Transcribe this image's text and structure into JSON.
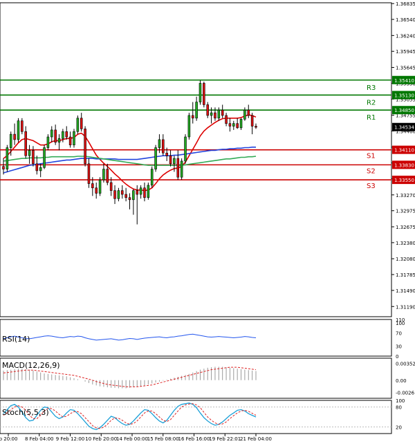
{
  "chart_data": [
    {
      "type": "candlestick",
      "panel": "price",
      "ylim": [
        1.31,
        1.3685
      ],
      "y_ticks": [
        "1.36835",
        "1.36540",
        "1.36240",
        "1.35945",
        "1.35645",
        "1.35350",
        "1.35055",
        "1.34755",
        "1.34460",
        "1.34160",
        "1.33865",
        "1.33570",
        "1.33270",
        "1.32975",
        "1.32675",
        "1.32380",
        "1.32080",
        "1.31785",
        "1.31490",
        "1.31190"
      ],
      "x_ticks": [
        "b 20:00",
        "8 Feb 04:00",
        "9 Feb 12:00",
        "10 Feb 20:00",
        "14 Feb 00:00",
        "15 Feb 08:00",
        "16 Feb 16:00",
        "19 Feb 22:01",
        "21 Feb 04:00"
      ],
      "current_price": "1.34534",
      "levels": [
        {
          "name": "R3",
          "value": 1.3541,
          "label": "1.35410",
          "color": "#007700"
        },
        {
          "name": "R2",
          "value": 1.3513,
          "label": "1.35130",
          "color": "#007700"
        },
        {
          "name": "R1",
          "value": 1.3485,
          "label": "1.34850",
          "color": "#007700"
        },
        {
          "name": "S1",
          "value": 1.3411,
          "label": "1.34110",
          "color": "#cc0000"
        },
        {
          "name": "S2",
          "value": 1.3383,
          "label": "1.33830",
          "color": "#cc0000"
        },
        {
          "name": "S3",
          "value": 1.3355,
          "label": "1.33550",
          "color": "#cc0000"
        }
      ],
      "candles": [
        [
          1.338,
          1.3395,
          1.3365,
          1.3375
        ],
        [
          1.3375,
          1.342,
          1.337,
          1.3415
        ],
        [
          1.3415,
          1.3445,
          1.34,
          1.344
        ],
        [
          1.344,
          1.346,
          1.342,
          1.343
        ],
        [
          1.343,
          1.347,
          1.3425,
          1.3465
        ],
        [
          1.3465,
          1.347,
          1.344,
          1.3445
        ],
        [
          1.3445,
          1.3455,
          1.3395,
          1.34
        ],
        [
          1.34,
          1.342,
          1.3385,
          1.341
        ],
        [
          1.341,
          1.3418,
          1.338,
          1.3385
        ],
        [
          1.3385,
          1.34,
          1.3365,
          1.3372
        ],
        [
          1.3372,
          1.3385,
          1.336,
          1.3378
        ],
        [
          1.3378,
          1.342,
          1.3375,
          1.3415
        ],
        [
          1.3415,
          1.344,
          1.341,
          1.3435
        ],
        [
          1.3435,
          1.3455,
          1.3425,
          1.3448
        ],
        [
          1.3448,
          1.3458,
          1.342,
          1.3425
        ],
        [
          1.3425,
          1.344,
          1.341,
          1.3432
        ],
        [
          1.3432,
          1.345,
          1.3425,
          1.3445
        ],
        [
          1.3445,
          1.3455,
          1.343,
          1.3435
        ],
        [
          1.3435,
          1.3445,
          1.3415,
          1.342
        ],
        [
          1.342,
          1.345,
          1.3415,
          1.3445
        ],
        [
          1.3445,
          1.3475,
          1.344,
          1.347
        ],
        [
          1.347,
          1.348,
          1.3445,
          1.345
        ],
        [
          1.345,
          1.3455,
          1.338,
          1.3385
        ],
        [
          1.3385,
          1.3395,
          1.334,
          1.3348
        ],
        [
          1.3348,
          1.336,
          1.3325,
          1.334
        ],
        [
          1.334,
          1.335,
          1.332,
          1.333
        ],
        [
          1.333,
          1.336,
          1.3325,
          1.3355
        ],
        [
          1.3355,
          1.3385,
          1.335,
          1.3375
        ],
        [
          1.3375,
          1.3385,
          1.3345,
          1.335
        ],
        [
          1.335,
          1.336,
          1.3325,
          1.3335
        ],
        [
          1.3335,
          1.3345,
          1.331,
          1.332
        ],
        [
          1.332,
          1.334,
          1.3315,
          1.3335
        ],
        [
          1.3335,
          1.3345,
          1.332,
          1.3328
        ],
        [
          1.3328,
          1.334,
          1.3315,
          1.3322
        ],
        [
          1.3322,
          1.333,
          1.33,
          1.3318
        ],
        [
          1.3318,
          1.3338,
          1.329,
          1.3335
        ],
        [
          1.3335,
          1.3345,
          1.3272,
          1.3328
        ],
        [
          1.3328,
          1.3345,
          1.332,
          1.334
        ],
        [
          1.334,
          1.335,
          1.3315,
          1.3322
        ],
        [
          1.3322,
          1.335,
          1.3318,
          1.3345
        ],
        [
          1.3345,
          1.338,
          1.334,
          1.3375
        ],
        [
          1.3375,
          1.342,
          1.337,
          1.3415
        ],
        [
          1.3415,
          1.344,
          1.3405,
          1.343
        ],
        [
          1.343,
          1.344,
          1.34,
          1.3405
        ],
        [
          1.3405,
          1.3415,
          1.339,
          1.34
        ],
        [
          1.34,
          1.341,
          1.338,
          1.3385
        ],
        [
          1.3385,
          1.34,
          1.337,
          1.3395
        ],
        [
          1.3395,
          1.341,
          1.3355,
          1.336
        ],
        [
          1.336,
          1.3395,
          1.3355,
          1.339
        ],
        [
          1.339,
          1.344,
          1.3385,
          1.3435
        ],
        [
          1.3435,
          1.348,
          1.343,
          1.3475
        ],
        [
          1.3475,
          1.35,
          1.346,
          1.347
        ],
        [
          1.347,
          1.351,
          1.3465,
          1.35
        ],
        [
          1.35,
          1.354,
          1.3495,
          1.3535
        ],
        [
          1.3535,
          1.3538,
          1.349,
          1.3495
        ],
        [
          1.3495,
          1.35,
          1.347,
          1.3475
        ],
        [
          1.3475,
          1.349,
          1.346,
          1.348
        ],
        [
          1.348,
          1.349,
          1.3465,
          1.347
        ],
        [
          1.347,
          1.349,
          1.3465,
          1.3485
        ],
        [
          1.3485,
          1.3495,
          1.347,
          1.3475
        ],
        [
          1.3475,
          1.348,
          1.3455,
          1.346
        ],
        [
          1.346,
          1.347,
          1.3445,
          1.3455
        ],
        [
          1.3455,
          1.3465,
          1.3448,
          1.346
        ],
        [
          1.346,
          1.347,
          1.345,
          1.3452
        ],
        [
          1.3452,
          1.347,
          1.3448,
          1.3468
        ],
        [
          1.3468,
          1.349,
          1.3465,
          1.3485
        ],
        [
          1.3485,
          1.3495,
          1.347,
          1.3475
        ],
        [
          1.3475,
          1.348,
          1.344,
          1.3455
        ],
        [
          1.3455,
          1.346,
          1.345,
          1.3453
        ]
      ],
      "moving_averages": [
        {
          "color": "#dd0000",
          "values": [
            1.3395,
            1.34,
            1.3408,
            1.3416,
            1.3424,
            1.343,
            1.3432,
            1.343,
            1.3428,
            1.3424,
            1.342,
            1.342,
            1.3422,
            1.3426,
            1.3428,
            1.3428,
            1.343,
            1.3432,
            1.3432,
            1.3434,
            1.344,
            1.3442,
            1.3436,
            1.3425,
            1.3413,
            1.3401,
            1.3393,
            1.3386,
            1.338,
            1.3373,
            1.3366,
            1.336,
            1.3353,
            1.3347,
            1.3342,
            1.3338,
            1.3336,
            1.3336,
            1.3335,
            1.3336,
            1.334,
            1.3348,
            1.3357,
            1.3364,
            1.3369,
            1.3373,
            1.3376,
            1.3377,
            1.338,
            1.3388,
            1.34,
            1.3412,
            1.3424,
            1.3437,
            1.3446,
            1.3452,
            1.3457,
            1.3462,
            1.3466,
            1.3469,
            1.347,
            1.347,
            1.347,
            1.347,
            1.3471,
            1.3474,
            1.3476,
            1.3475,
            1.3472
          ]
        },
        {
          "color": "#2244dd",
          "values": [
            1.3368,
            1.337,
            1.3372,
            1.3374,
            1.3376,
            1.3378,
            1.338,
            1.3382,
            1.3383,
            1.3384,
            1.3385,
            1.3386,
            1.3387,
            1.3388,
            1.3389,
            1.339,
            1.3391,
            1.3392,
            1.3392,
            1.3393,
            1.3394,
            1.3395,
            1.3395,
            1.3395,
            1.3395,
            1.3394,
            1.3394,
            1.3394,
            1.3394,
            1.3394,
            1.3394,
            1.3393,
            1.3393,
            1.3393,
            1.3393,
            1.3393,
            1.3393,
            1.3394,
            1.3395,
            1.3396,
            1.3397,
            1.3398,
            1.3399,
            1.34,
            1.34,
            1.34,
            1.3401,
            1.3401,
            1.3402,
            1.3403,
            1.3404,
            1.3405,
            1.3406,
            1.3407,
            1.3408,
            1.3409,
            1.341,
            1.341,
            1.3411,
            1.3412,
            1.3412,
            1.3413,
            1.3413,
            1.3414,
            1.3414,
            1.3415,
            1.3415,
            1.3416,
            1.3416
          ]
        },
        {
          "color": "#33aa55",
          "values": [
            1.339,
            1.3391,
            1.3392,
            1.3393,
            1.3394,
            1.3395,
            1.3395,
            1.3396,
            1.3396,
            1.3396,
            1.3396,
            1.3397,
            1.3397,
            1.3398,
            1.3398,
            1.3398,
            1.3398,
            1.3398,
            1.3398,
            1.3398,
            1.3399,
            1.3399,
            1.3399,
            1.3398,
            1.3397,
            1.3396,
            1.3395,
            1.3394,
            1.3393,
            1.3392,
            1.3391,
            1.339,
            1.3389,
            1.3388,
            1.3387,
            1.3386,
            1.3385,
            1.3384,
            1.3383,
            1.3382,
            1.3382,
            1.3382,
            1.3382,
            1.3382,
            1.3382,
            1.3382,
            1.3382,
            1.3382,
            1.3382,
            1.3383,
            1.3384,
            1.3385,
            1.3386,
            1.3387,
            1.3388,
            1.3389,
            1.339,
            1.3391,
            1.3392,
            1.3393,
            1.3394,
            1.3394,
            1.3395,
            1.3396,
            1.3397,
            1.3397,
            1.3398,
            1.3398,
            1.3399
          ]
        }
      ]
    },
    {
      "type": "line",
      "panel": "rsi",
      "label": "RSI(14)",
      "ylim": [
        0,
        110
      ],
      "y_ticks": [
        "110",
        "100",
        "70",
        "30",
        "0"
      ],
      "values": [
        52,
        55,
        58,
        60,
        57,
        55,
        53,
        52,
        54,
        56,
        58,
        60,
        61,
        60,
        58,
        56,
        55,
        57,
        59,
        58,
        60,
        59,
        55,
        52,
        50,
        48,
        49,
        50,
        51,
        52,
        50,
        48,
        49,
        51,
        53,
        52,
        50,
        52,
        54,
        55,
        56,
        57,
        58,
        56,
        55,
        57,
        58,
        60,
        61,
        63,
        65,
        66,
        64,
        62,
        60,
        58,
        57,
        58,
        59,
        58,
        57,
        56,
        55,
        56,
        57,
        59,
        58,
        56,
        55
      ]
    },
    {
      "type": "bar",
      "panel": "macd",
      "label": "MACD(12,26,9)",
      "ylim": [
        -0.0038,
        0.0046
      ],
      "y_ticks": [
        "0.003526",
        "0.00",
        "-0.0026"
      ],
      "histogram": [
        0.002,
        0.0021,
        0.0022,
        0.0023,
        0.0024,
        0.0024,
        0.0023,
        0.0022,
        0.002,
        0.0018,
        0.0016,
        0.0014,
        0.0013,
        0.0012,
        0.0011,
        0.001,
        0.0009,
        0.0008,
        0.0006,
        0.0004,
        0.0002,
        0.0,
        -0.0003,
        -0.0006,
        -0.0009,
        -0.0011,
        -0.0013,
        -0.0014,
        -0.0015,
        -0.0016,
        -0.0016,
        -0.0017,
        -0.0017,
        -0.0017,
        -0.0016,
        -0.0015,
        -0.0014,
        -0.0013,
        -0.0011,
        -0.0009,
        -0.0007,
        -0.0005,
        -0.0003,
        -0.0001,
        0.0001,
        0.0003,
        0.0005,
        0.0007,
        0.0009,
        0.0011,
        0.0013,
        0.0016,
        0.0019,
        0.0022,
        0.0024,
        0.0026,
        0.0027,
        0.0028,
        0.0028,
        0.0028,
        0.0027,
        0.0026,
        0.0025,
        0.0024,
        0.0023,
        0.0022,
        0.0021,
        0.002,
        0.0019
      ],
      "signal": [
        0.0015,
        0.0016,
        0.0017,
        0.0018,
        0.0019,
        0.002,
        0.0021,
        0.0021,
        0.0021,
        0.002,
        0.0019,
        0.0018,
        0.0017,
        0.0016,
        0.0015,
        0.0014,
        0.0013,
        0.0012,
        0.0011,
        0.001,
        0.0008,
        0.0006,
        0.0004,
        0.0002,
        0.0,
        -0.0003,
        -0.0005,
        -0.0007,
        -0.0009,
        -0.001,
        -0.0011,
        -0.0012,
        -0.0013,
        -0.0014,
        -0.0014,
        -0.0014,
        -0.0014,
        -0.0013,
        -0.0012,
        -0.0011,
        -0.001,
        -0.0008,
        -0.0006,
        -0.0004,
        -0.0002,
        0.0,
        0.0002,
        0.0004,
        0.0006,
        0.0008,
        0.001,
        0.0012,
        0.0014,
        0.0016,
        0.0018,
        0.002,
        0.0022,
        0.0023,
        0.0024,
        0.0025,
        0.0026,
        0.0027,
        0.0027,
        0.0027,
        0.0026,
        0.0025,
        0.0024,
        0.0023,
        0.0022
      ]
    },
    {
      "type": "line",
      "panel": "stoch",
      "label": "Stoch(5,5,3)",
      "ylim": [
        0,
        100
      ],
      "y_ticks": [
        "100",
        "80",
        "20"
      ],
      "main": [
        60,
        72,
        84,
        88,
        80,
        65,
        48,
        38,
        40,
        55,
        70,
        80,
        78,
        65,
        52,
        45,
        50,
        62,
        72,
        70,
        60,
        48,
        35,
        22,
        15,
        12,
        18,
        28,
        40,
        52,
        48,
        38,
        30,
        25,
        28,
        38,
        50,
        62,
        72,
        70,
        60,
        48,
        38,
        32,
        40,
        55,
        70,
        82,
        88,
        90,
        92,
        88,
        78,
        62,
        48,
        38,
        30,
        25,
        28,
        35,
        45,
        55,
        62,
        70,
        72,
        68,
        60,
        55,
        50
      ],
      "signal": [
        55,
        62,
        72,
        80,
        84,
        80,
        70,
        55,
        45,
        45,
        55,
        68,
        76,
        75,
        68,
        58,
        50,
        52,
        60,
        66,
        66,
        60,
        48,
        36,
        24,
        17,
        15,
        19,
        28,
        40,
        47,
        46,
        40,
        32,
        28,
        30,
        38,
        50,
        62,
        68,
        68,
        60,
        50,
        40,
        36,
        42,
        55,
        68,
        80,
        86,
        89,
        90,
        86,
        78,
        64,
        50,
        40,
        32,
        28,
        29,
        35,
        45,
        54,
        62,
        68,
        70,
        67,
        61,
        55
      ]
    }
  ]
}
